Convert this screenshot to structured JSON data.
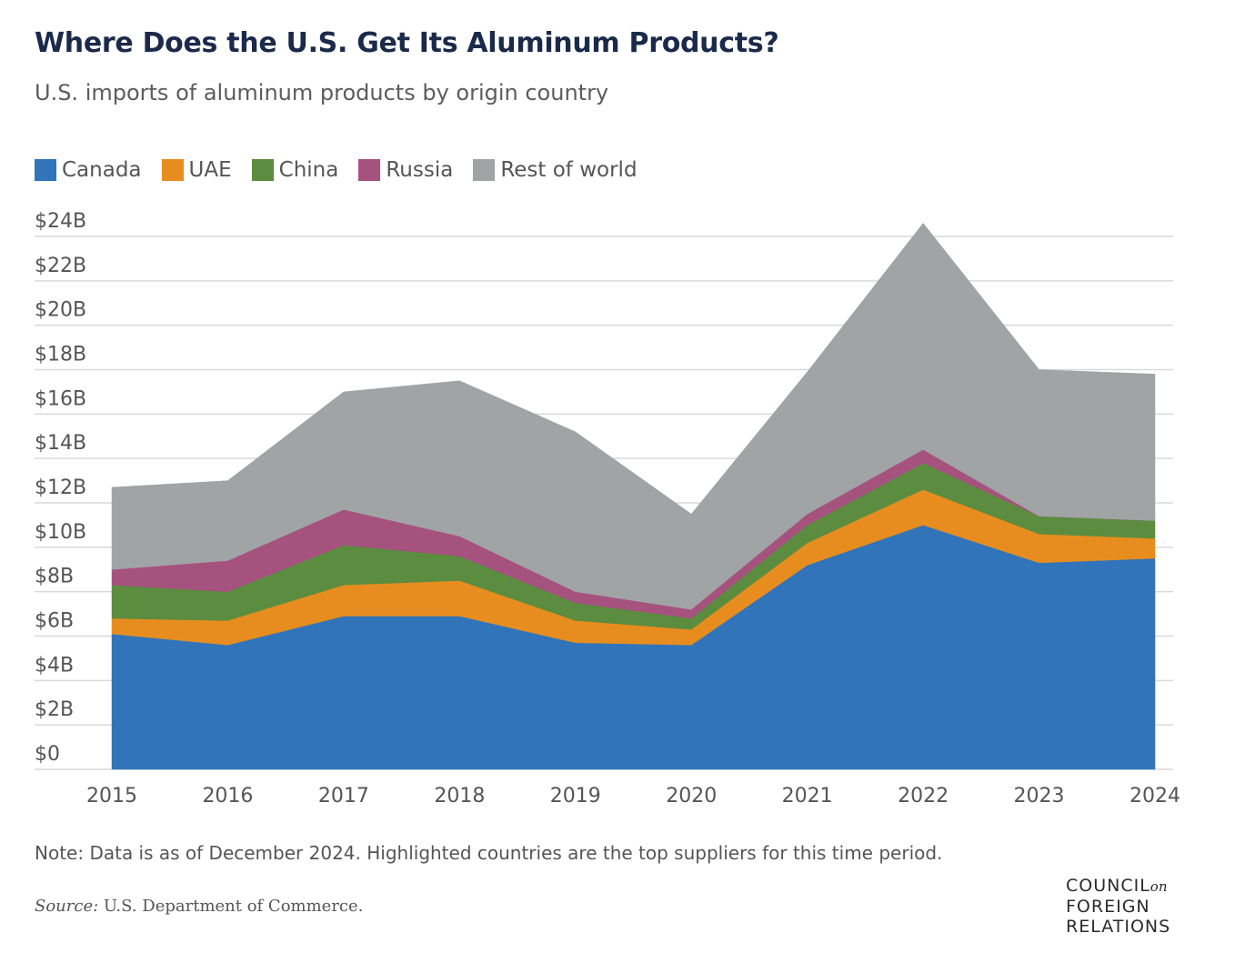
{
  "title": "Where Does the U.S. Get Its Aluminum Products?",
  "subtitle": "U.S. imports of aluminum products by origin country",
  "note": "Note: Data is as of December 2024. Highlighted countries are the top suppliers for this time period.",
  "source_label": "Source:",
  "source_text": " U.S. Department of Commerce.",
  "logo": {
    "line1": "COUNCIL",
    "line1_suffix": "on",
    "line2": "FOREIGN",
    "line3": "RELATIONS"
  },
  "colors": {
    "Canada": "#3174b9",
    "UAE": "#e78d1f",
    "China": "#5b8c3f",
    "Russia": "#a5527f",
    "Rest of world": "#a0a4a5",
    "grid": "#d9d9d9",
    "text": "#555555"
  },
  "chart_data": {
    "type": "area",
    "stacked": true,
    "x": [
      "2015",
      "2016",
      "2017",
      "2018",
      "2019",
      "2020",
      "2021",
      "2022",
      "2023",
      "2024"
    ],
    "ylim": [
      0,
      24
    ],
    "yticks": [
      0,
      2,
      4,
      6,
      8,
      10,
      12,
      14,
      16,
      18,
      20,
      22,
      24
    ],
    "ytick_labels": [
      "$0",
      "$2B",
      "$4B",
      "$6B",
      "$8B",
      "$10B",
      "$12B",
      "$14B",
      "$16B",
      "$18B",
      "$20B",
      "$22B",
      "$24B"
    ],
    "grid": true,
    "legend": "top-left",
    "series": [
      {
        "name": "Canada",
        "values": [
          6.1,
          5.6,
          6.9,
          6.9,
          5.7,
          5.6,
          9.2,
          11.0,
          9.3,
          9.5
        ]
      },
      {
        "name": "UAE",
        "values": [
          0.7,
          1.1,
          1.4,
          1.6,
          1.0,
          0.7,
          1.0,
          1.6,
          1.3,
          0.9
        ]
      },
      {
        "name": "China",
        "values": [
          1.5,
          1.3,
          1.8,
          1.1,
          0.8,
          0.5,
          0.8,
          1.2,
          0.8,
          0.8
        ]
      },
      {
        "name": "Russia",
        "values": [
          0.7,
          1.4,
          1.6,
          0.9,
          0.5,
          0.4,
          0.5,
          0.6,
          0.0,
          0.0
        ]
      },
      {
        "name": "Rest of world",
        "values": [
          3.7,
          3.6,
          5.3,
          7.0,
          7.2,
          4.3,
          6.4,
          10.2,
          6.6,
          6.6
        ]
      }
    ]
  }
}
